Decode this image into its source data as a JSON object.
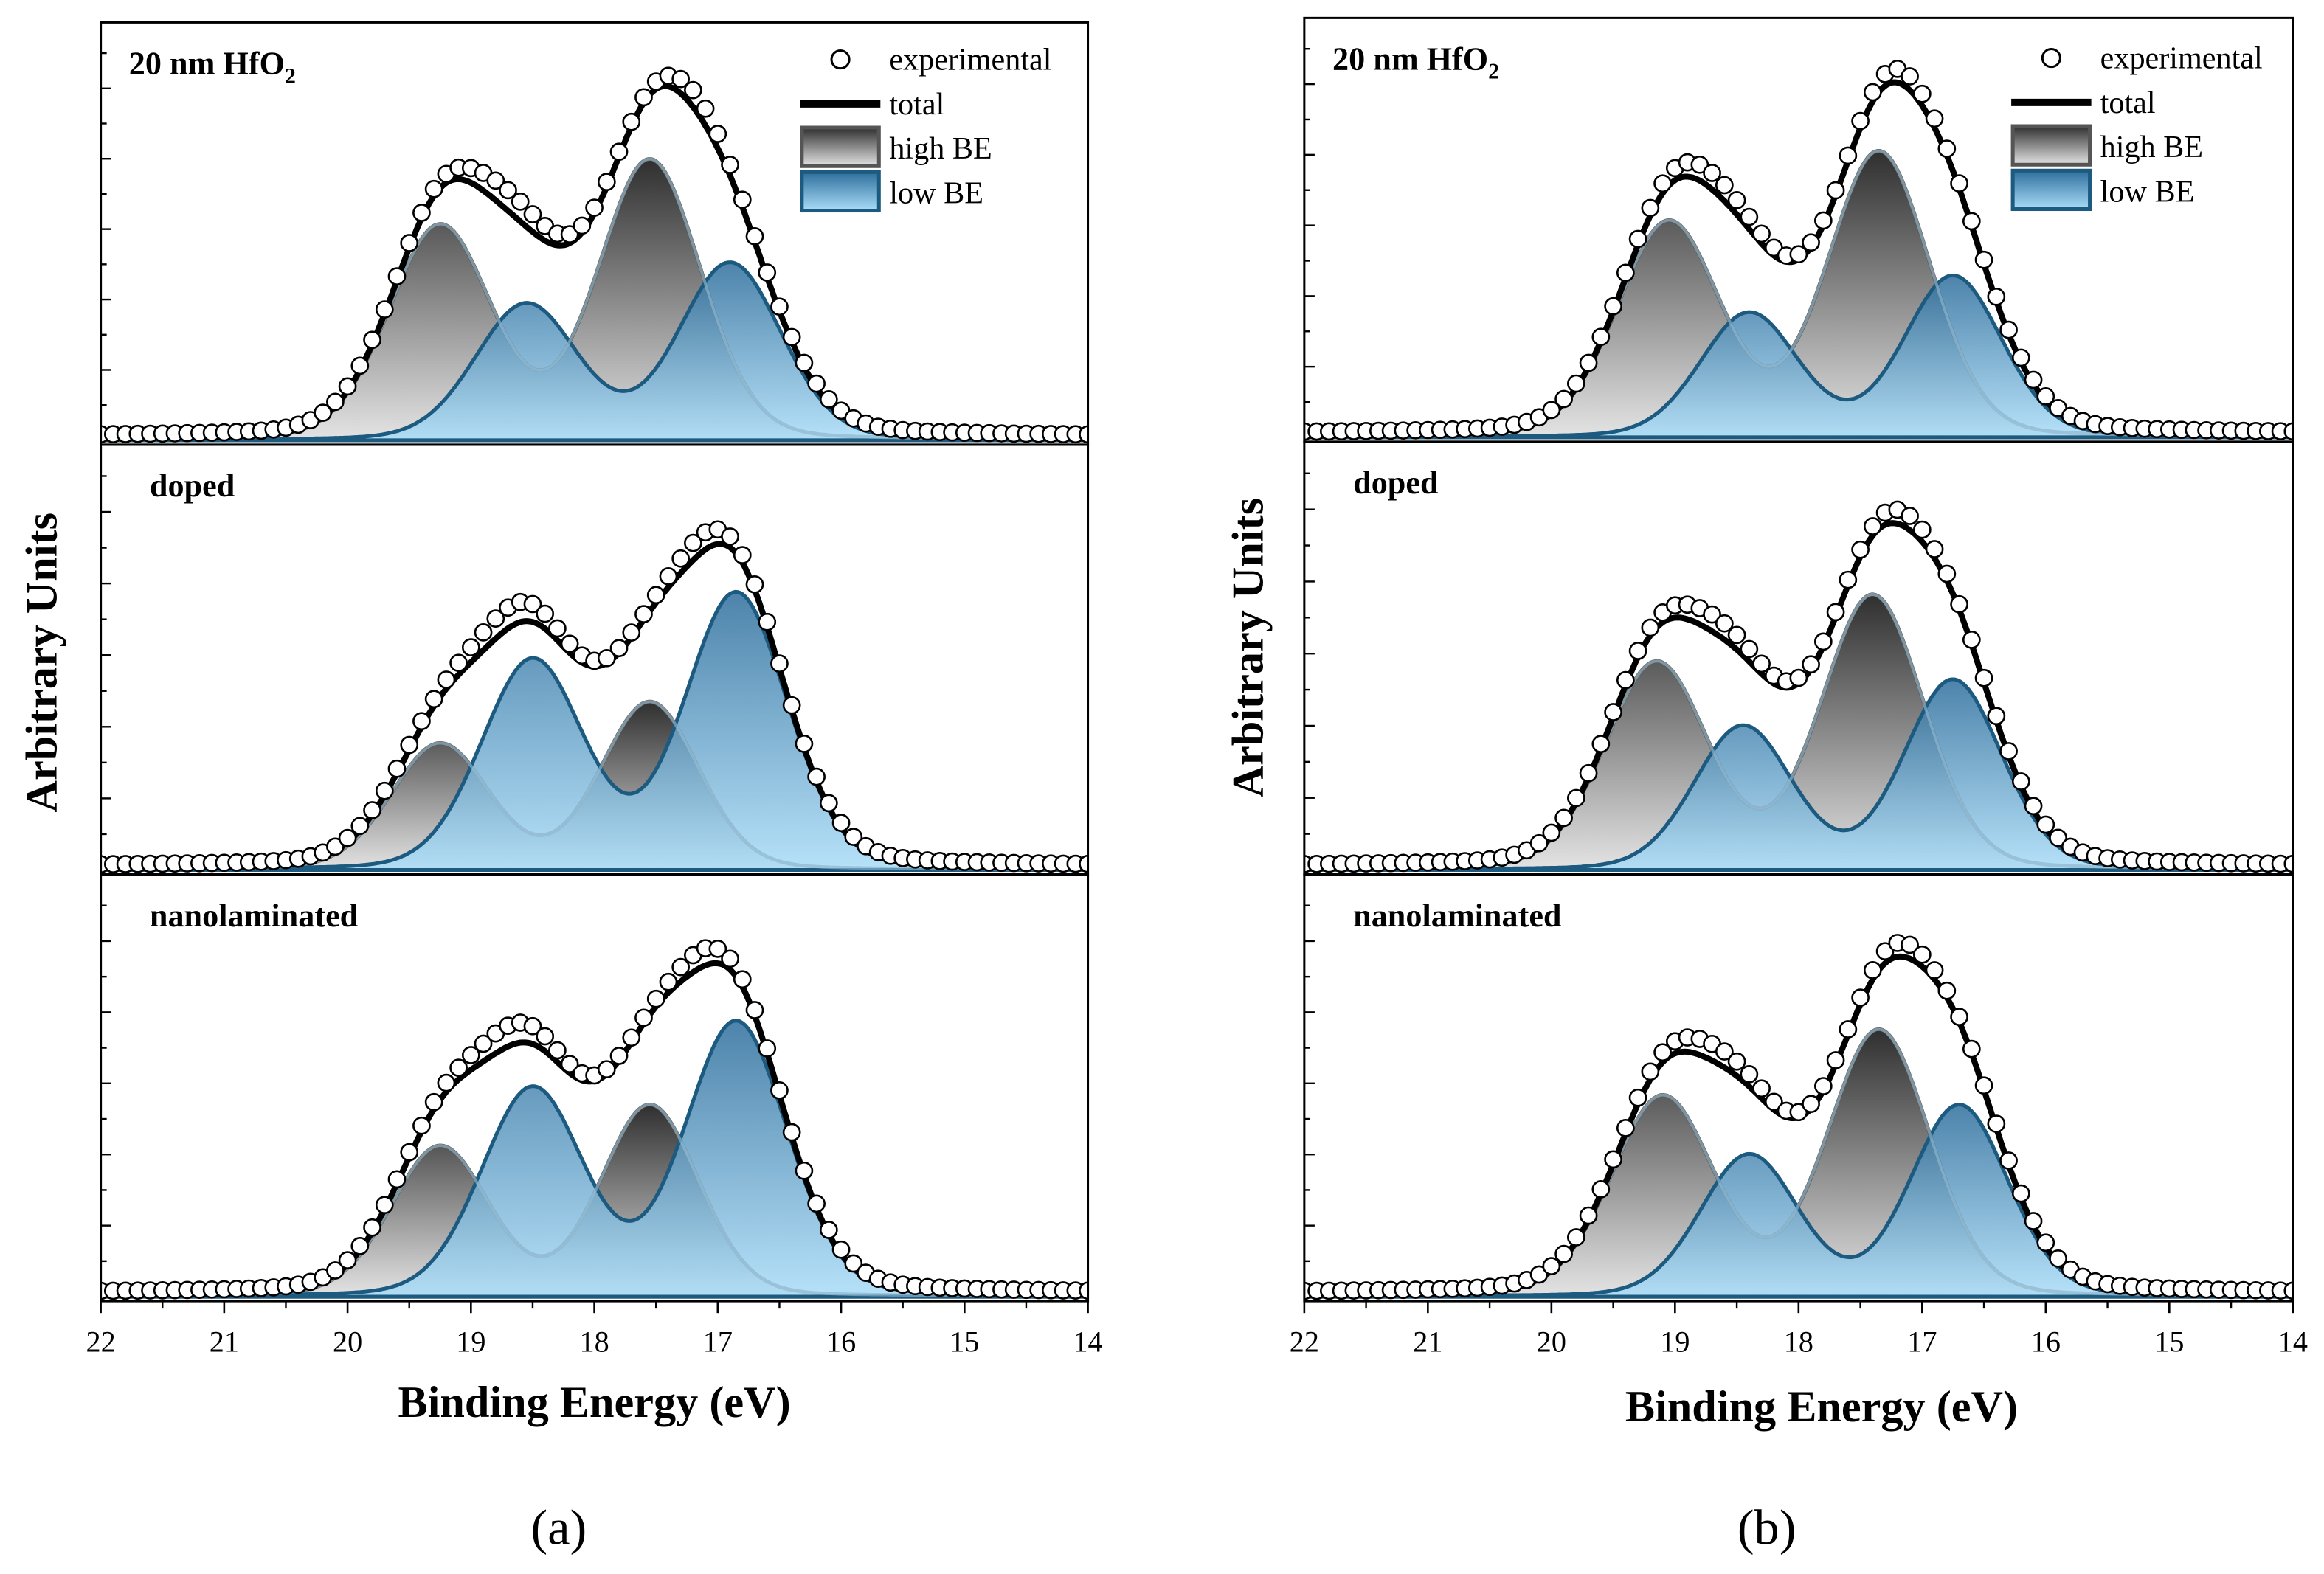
{
  "chart_data": [
    {
      "type": "area",
      "caption": "(a)",
      "xlabel": "Binding Energy (eV)",
      "ylabel": "Arbitrary Units",
      "xlim": [
        22,
        14
      ],
      "xticks": [
        "22",
        "21",
        "20",
        "19",
        "18",
        "17",
        "16",
        "15",
        "14"
      ],
      "ylim": [
        0,
        1
      ],
      "legend": {
        "placement": "top-right",
        "entries": [
          "experimental",
          "total",
          "high BE",
          "low BE"
        ]
      },
      "panels": [
        {
          "label": "20 nm HfO",
          "label_sub": "2",
          "high_BE": [
            {
              "center": 19.25,
              "amp": 0.52,
              "sigma": 0.42
            },
            {
              "center": 17.55,
              "amp": 0.68,
              "sigma": 0.42
            }
          ],
          "low_BE": [
            {
              "center": 18.55,
              "amp": 0.33,
              "sigma": 0.42
            },
            {
              "center": 16.9,
              "amp": 0.43,
              "sigma": 0.42
            }
          ],
          "exp_offset": 0.04
        },
        {
          "label": "doped",
          "label_sub": "",
          "high_BE": [
            {
              "center": 19.25,
              "amp": 0.3,
              "sigma": 0.4
            },
            {
              "center": 17.55,
              "amp": 0.4,
              "sigma": 0.4
            }
          ],
          "low_BE": [
            {
              "center": 18.5,
              "amp": 0.5,
              "sigma": 0.42
            },
            {
              "center": 16.85,
              "amp": 0.66,
              "sigma": 0.42
            }
          ],
          "exp_offset": 0.04
        },
        {
          "label": "nanolaminated",
          "label_sub": "",
          "high_BE": [
            {
              "center": 19.25,
              "amp": 0.36,
              "sigma": 0.4
            },
            {
              "center": 17.55,
              "amp": 0.46,
              "sigma": 0.4
            }
          ],
          "low_BE": [
            {
              "center": 18.5,
              "amp": 0.5,
              "sigma": 0.42
            },
            {
              "center": 16.85,
              "amp": 0.66,
              "sigma": 0.42
            }
          ],
          "exp_offset": 0.04
        }
      ]
    },
    {
      "type": "area",
      "caption": "(b)",
      "xlabel": "Binding Energy (eV)",
      "ylabel": "Arbitrary Units",
      "xlim": [
        22,
        14
      ],
      "xticks": [
        "22",
        "21",
        "20",
        "19",
        "18",
        "17",
        "16",
        "15",
        "14"
      ],
      "ylim": [
        0,
        1
      ],
      "legend": {
        "placement": "top-right",
        "entries": [
          "experimental",
          "total",
          "high BE",
          "low BE"
        ]
      },
      "panels": [
        {
          "label": "20 nm HfO",
          "label_sub": "2",
          "high_BE": [
            {
              "center": 19.05,
              "amp": 0.52,
              "sigma": 0.42
            },
            {
              "center": 17.35,
              "amp": 0.69,
              "sigma": 0.42
            }
          ],
          "low_BE": [
            {
              "center": 18.4,
              "amp": 0.3,
              "sigma": 0.4
            },
            {
              "center": 16.75,
              "amp": 0.39,
              "sigma": 0.4
            }
          ],
          "exp_offset": 0.03
        },
        {
          "label": "doped",
          "label_sub": "",
          "high_BE": [
            {
              "center": 19.15,
              "amp": 0.49,
              "sigma": 0.42
            },
            {
              "center": 17.4,
              "amp": 0.65,
              "sigma": 0.42
            }
          ],
          "low_BE": [
            {
              "center": 18.45,
              "amp": 0.34,
              "sigma": 0.4
            },
            {
              "center": 16.75,
              "amp": 0.45,
              "sigma": 0.4
            }
          ],
          "exp_offset": 0.03
        },
        {
          "label": "nanolaminated",
          "label_sub": "",
          "high_BE": [
            {
              "center": 19.1,
              "amp": 0.48,
              "sigma": 0.42
            },
            {
              "center": 17.35,
              "amp": 0.64,
              "sigma": 0.42
            }
          ],
          "low_BE": [
            {
              "center": 18.4,
              "amp": 0.34,
              "sigma": 0.4
            },
            {
              "center": 16.7,
              "amp": 0.46,
              "sigma": 0.4
            }
          ],
          "exp_offset": 0.03
        }
      ]
    }
  ],
  "colors": {
    "high_stroke": "#555555",
    "low_stroke": "#1c5a80",
    "high_top": "#2f2f2f",
    "high_bottom": "#e4e4e4",
    "low_top": "#2e6e9c",
    "low_bottom": "#a9dcf8"
  }
}
